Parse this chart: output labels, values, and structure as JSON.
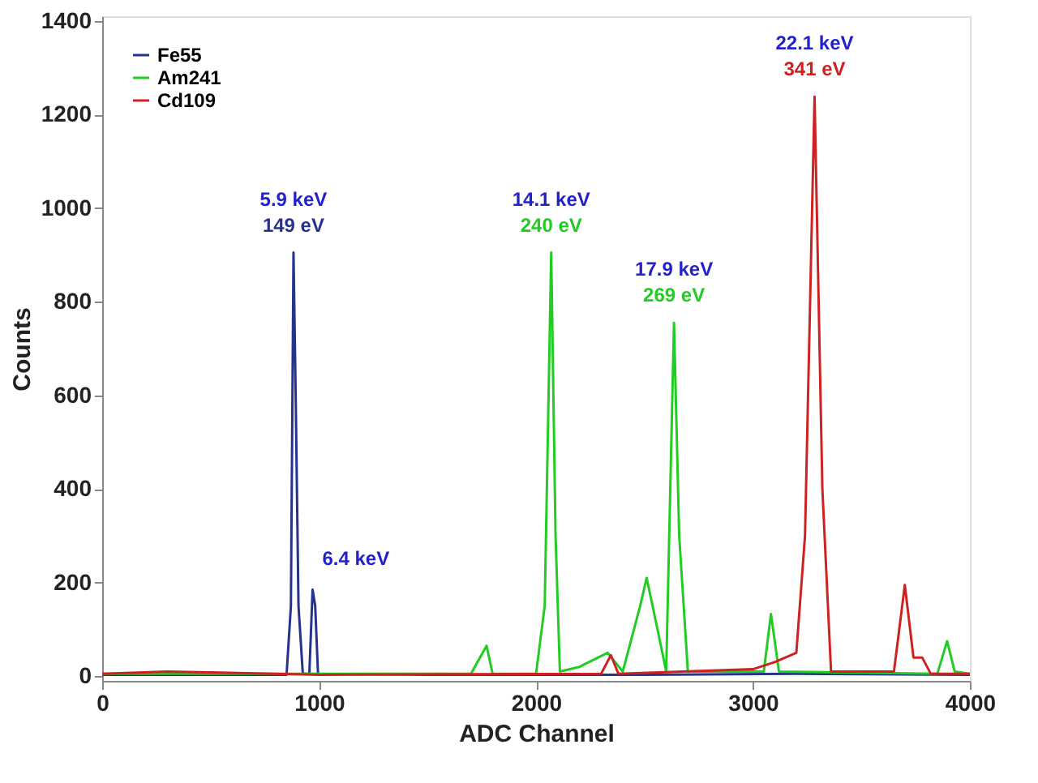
{
  "chart_data": {
    "type": "line",
    "xlabel": "ADC Channel",
    "ylabel": "Counts",
    "xlim": [
      0,
      4000
    ],
    "xticks": [
      0,
      1000,
      2000,
      3000,
      4000
    ],
    "ylim": [
      -10,
      1410
    ],
    "yticks": [
      0,
      200,
      400,
      600,
      800,
      1000,
      1200,
      1400
    ],
    "grid": false,
    "legend": "top left",
    "marker": "none",
    "line_style": "solid",
    "series": [
      {
        "name": "Fe55",
        "color": "#26338c",
        "x": [
          0,
          600,
          850,
          870,
          882,
          892,
          905,
          925,
          955,
          970,
          982,
          995,
          1500,
          2500,
          3200,
          4000
        ],
        "values": [
          3,
          3,
          3,
          150,
          905,
          600,
          150,
          5,
          5,
          185,
          150,
          5,
          3,
          3,
          5,
          3
        ]
      },
      {
        "name": "Am241",
        "color": "#22cc22",
        "x": [
          0,
          1700,
          1772,
          1800,
          2000,
          2040,
          2070,
          2090,
          2110,
          2200,
          2330,
          2400,
          2480,
          2510,
          2560,
          2600,
          2636,
          2660,
          2700,
          3050,
          3083,
          3120,
          3850,
          3895,
          3930,
          4000
        ],
        "values": [
          5,
          5,
          65,
          5,
          5,
          150,
          905,
          300,
          10,
          20,
          50,
          10,
          150,
          210,
          100,
          10,
          755,
          300,
          10,
          10,
          133,
          10,
          5,
          75,
          10,
          5
        ]
      },
      {
        "name": "Cd109",
        "color": "#cc2222",
        "x": [
          0,
          300,
          500,
          1000,
          2300,
          2345,
          2380,
          3000,
          3100,
          3200,
          3240,
          3284,
          3320,
          3360,
          3650,
          3700,
          3740,
          3780,
          3820,
          4000
        ],
        "values": [
          5,
          10,
          8,
          3,
          5,
          45,
          5,
          15,
          30,
          50,
          300,
          1238,
          400,
          10,
          10,
          195,
          40,
          40,
          5,
          5
        ]
      }
    ],
    "annotations": [
      {
        "text": "5.9 keV",
        "x": 882,
        "y": 905
      },
      {
        "text": "149 eV",
        "x": 882,
        "y": 905
      },
      {
        "text": "6.4 keV",
        "x": 970,
        "y": 185
      },
      {
        "text": "14.1 keV",
        "x": 2070,
        "y": 905
      },
      {
        "text": "240 eV",
        "x": 2070,
        "y": 905
      },
      {
        "text": "17.9 keV",
        "x": 2636,
        "y": 755
      },
      {
        "text": "269 eV",
        "x": 2636,
        "y": 755
      },
      {
        "text": "22.1 keV",
        "x": 3284,
        "y": 1238
      },
      {
        "text": "341 eV",
        "x": 3284,
        "y": 1238
      }
    ]
  }
}
